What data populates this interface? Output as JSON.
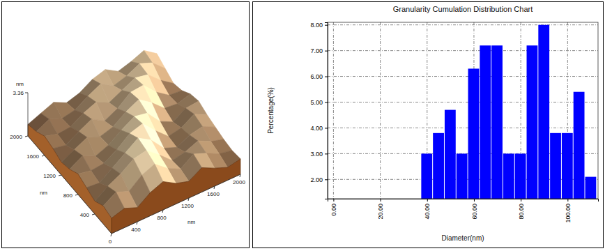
{
  "chart_data": [
    {
      "type": "surface",
      "x": [
        0,
        200,
        400,
        600,
        800,
        1000,
        1200,
        1400,
        1600,
        1800,
        2000
      ],
      "y": [
        0,
        200,
        400,
        600,
        800,
        1000,
        1200,
        1400,
        1600,
        1800,
        2000
      ],
      "z": [
        [
          1.2,
          1.5,
          1.1,
          1.8,
          2.2,
          1.6,
          1.3,
          1.9,
          1.4,
          1.0,
          1.2
        ],
        [
          1.4,
          2.0,
          1.6,
          2.4,
          2.8,
          2.0,
          1.5,
          2.2,
          1.8,
          1.3,
          1.1
        ],
        [
          1.0,
          1.7,
          2.2,
          2.9,
          3.1,
          2.3,
          1.4,
          1.6,
          2.0,
          1.5,
          1.2
        ],
        [
          1.3,
          1.2,
          1.9,
          2.6,
          3.3,
          2.7,
          1.6,
          1.2,
          1.7,
          1.9,
          1.4
        ],
        [
          1.6,
          1.4,
          1.5,
          2.1,
          2.9,
          3.2,
          2.2,
          1.3,
          1.5,
          2.1,
          1.6
        ],
        [
          1.2,
          1.8,
          1.3,
          1.7,
          2.4,
          3.0,
          2.8,
          1.7,
          1.2,
          1.8,
          1.9
        ],
        [
          1.0,
          1.5,
          2.0,
          1.6,
          1.9,
          2.6,
          3.1,
          2.4,
          1.5,
          1.4,
          1.7
        ],
        [
          1.3,
          1.1,
          1.7,
          2.2,
          1.6,
          2.1,
          2.9,
          3.0,
          2.0,
          1.3,
          1.2
        ],
        [
          1.5,
          1.2,
          1.3,
          1.9,
          2.3,
          1.8,
          2.3,
          2.8,
          2.6,
          1.7,
          1.0
        ],
        [
          1.1,
          1.6,
          1.2,
          1.4,
          2.0,
          2.5,
          1.9,
          2.2,
          2.7,
          2.3,
          1.4
        ],
        [
          0.9,
          1.3,
          1.7,
          1.2,
          1.5,
          2.1,
          2.4,
          1.8,
          2.1,
          2.5,
          1.8
        ]
      ],
      "xlim": [
        0,
        2000
      ],
      "ylim": [
        0,
        2000
      ],
      "zlim": [
        0,
        3.36
      ],
      "xticks": [
        0,
        400,
        800,
        1200,
        1600,
        2000
      ],
      "yticks": [
        400,
        800,
        1200,
        1600,
        2000
      ],
      "zticks": [
        3.36
      ],
      "xlabel": "nm",
      "ylabel": "nm",
      "zlabel": "nm"
    },
    {
      "type": "histogram",
      "title": "Granularity Cumulation Distribution Chart",
      "xlabel": "Diameter(nm)",
      "ylabel": "Percentage(%)",
      "bins": [
        37.5,
        42.5,
        47.5,
        52.5,
        57.5,
        62.5,
        67.5,
        72.5,
        77.5,
        82.5,
        87.5,
        92.5,
        97.5,
        102.5,
        107.5,
        112.5
      ],
      "values": [
        3.0,
        3.8,
        4.7,
        3.0,
        6.3,
        7.2,
        7.2,
        3.0,
        3.0,
        7.2,
        8.0,
        3.8,
        3.8,
        5.4,
        2.1
      ],
      "color": "#0000ff",
      "xlim": [
        -2.5,
        113
      ],
      "ylim": [
        1.25,
        8.1
      ],
      "xticks": [
        {
          "value": 0,
          "label": "0.00"
        },
        {
          "value": 20,
          "label": "20.00"
        },
        {
          "value": 40,
          "label": "40.00"
        },
        {
          "value": 60,
          "label": "60.00"
        },
        {
          "value": 80,
          "label": "80.00"
        },
        {
          "value": 100,
          "label": "100.00"
        }
      ],
      "yticks": [
        {
          "value": 2,
          "label": "2.00"
        },
        {
          "value": 3,
          "label": "3.00"
        },
        {
          "value": 4,
          "label": "4.00"
        },
        {
          "value": 5,
          "label": "5.00"
        },
        {
          "value": 6,
          "label": "6.00"
        },
        {
          "value": 7,
          "label": "7.00"
        },
        {
          "value": 8,
          "label": "8.00"
        }
      ],
      "grid": true
    }
  ]
}
